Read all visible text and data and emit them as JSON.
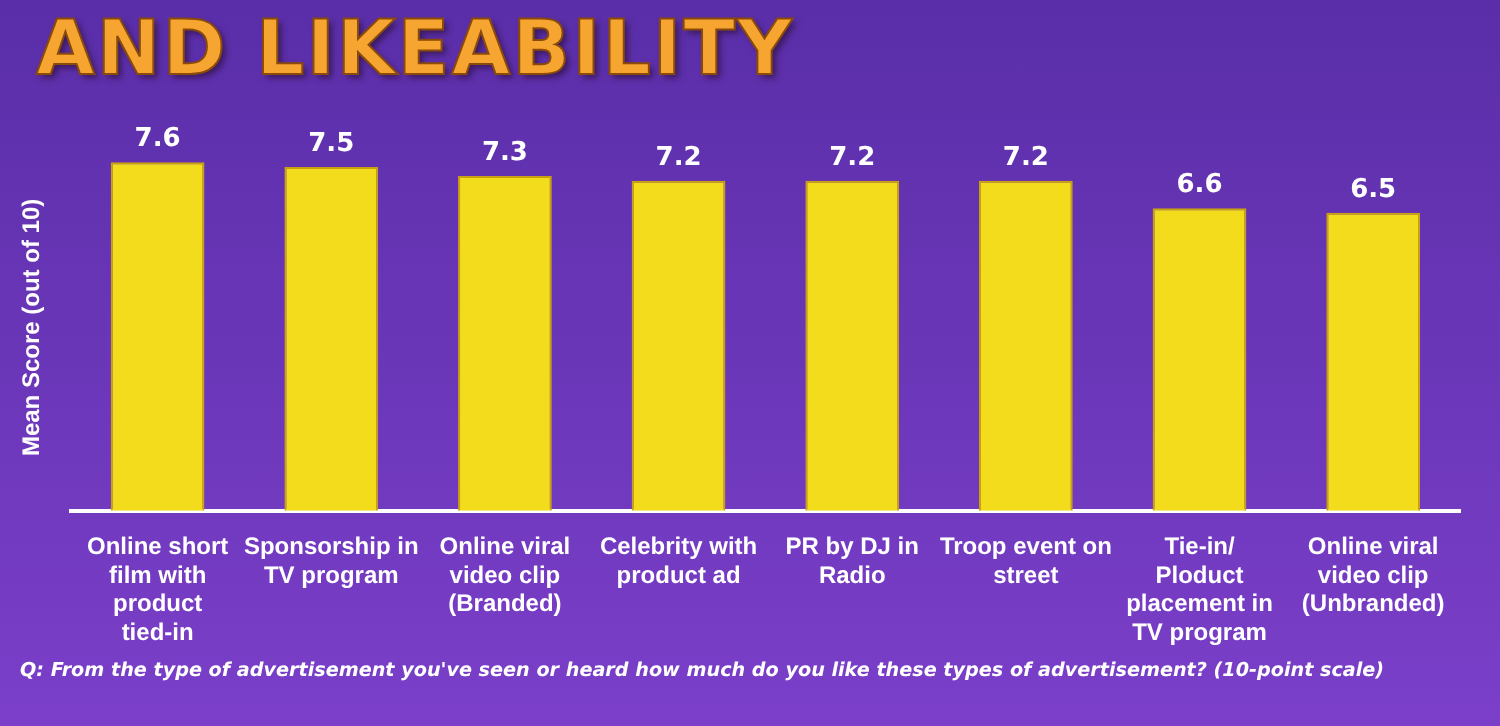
{
  "chart_data": {
    "type": "bar",
    "title": "AND LIKEABILITY",
    "ylabel": "Mean Score (out of 10)",
    "categories": [
      "Online short film with product tied-in",
      "Sponsorship in TV program",
      "Online viral video clip (Branded)",
      "Celebrity with product ad",
      "PR by DJ in Radio",
      "Troop event on street",
      "Tie-in/ Ploduct placement in TV program",
      "Online viral video clip (Unbranded)"
    ],
    "values": [
      7.6,
      7.5,
      7.3,
      7.2,
      7.2,
      7.2,
      6.6,
      6.5
    ],
    "color": "#f2dc1c",
    "data_labels": true,
    "tick_labels": "x",
    "grid": false,
    "legend": false,
    "annotations": [
      "Q: From the type of advertisement you've seen or heard how much do you like these types of advertisement? (10-point scale)"
    ]
  }
}
